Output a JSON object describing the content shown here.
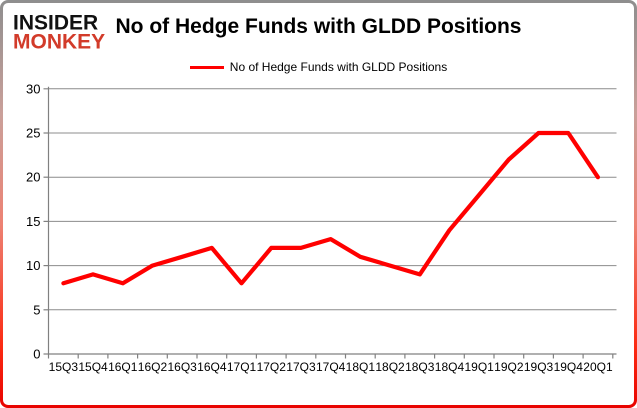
{
  "brand": {
    "line1": "INSIDER",
    "line2": "MONKEY",
    "line1_color": "#111111",
    "line2_color": "#d23b2a"
  },
  "title": "No of Hedge Funds with GLDD Positions",
  "legend": {
    "label": "No of Hedge Funds with GLDD Positions",
    "line_color": "#ff0000"
  },
  "chart_data": {
    "type": "line",
    "title": "No of Hedge Funds with GLDD Positions",
    "series": [
      {
        "name": "No of Hedge Funds with GLDD Positions",
        "values": [
          8,
          9,
          8,
          10,
          11,
          12,
          8,
          12,
          12,
          13,
          11,
          10,
          9,
          14,
          18,
          22,
          25,
          25,
          20
        ],
        "color": "#ff0000"
      }
    ],
    "categories": [
      "15Q3",
      "15Q4",
      "16Q1",
      "16Q2",
      "16Q3",
      "16Q4",
      "17Q1",
      "17Q2",
      "17Q3",
      "17Q4",
      "18Q1",
      "18Q2",
      "18Q3",
      "18Q4",
      "19Q1",
      "19Q2",
      "19Q3",
      "19Q4",
      "20Q1"
    ],
    "yticks": [
      0,
      5,
      10,
      15,
      20,
      25,
      30
    ],
    "ylim": [
      0,
      30
    ],
    "xlabel": "",
    "ylabel": "",
    "grid": true,
    "grid_color": "#8c8c8c",
    "axis_color": "#808080",
    "label_color": "#000000",
    "legend_position": "top-center"
  }
}
